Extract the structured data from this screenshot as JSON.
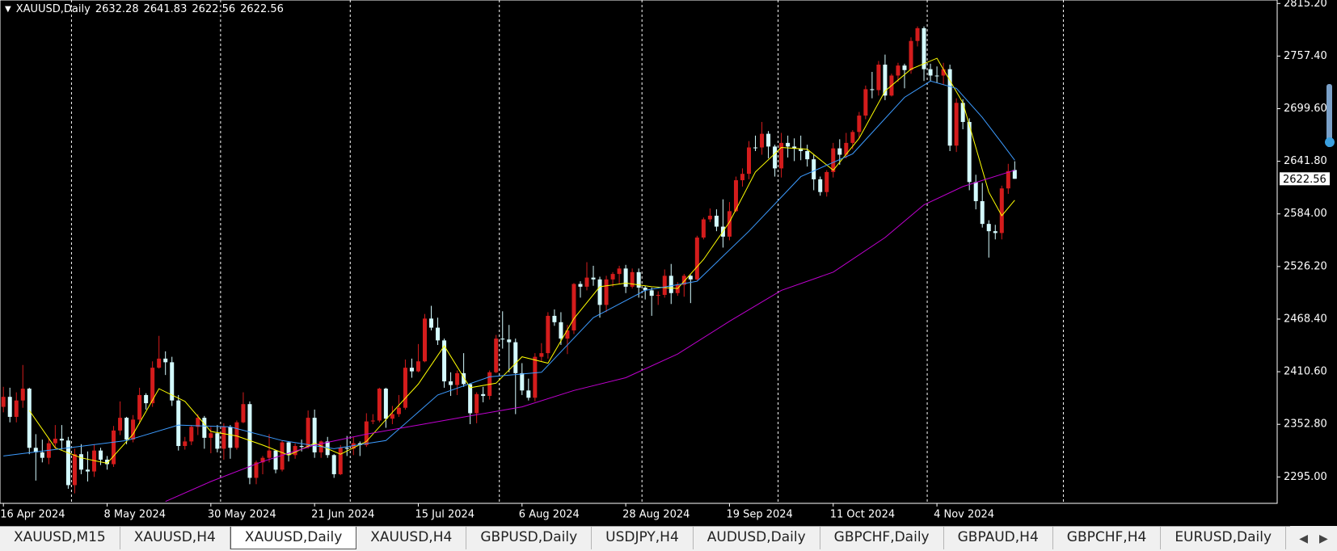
{
  "chart_data": {
    "type": "candlestick",
    "title": "XAUUSD,Daily",
    "categories": [
      "16 Apr 2024",
      null,
      null,
      null,
      null,
      null,
      null,
      null,
      null,
      null,
      null,
      null,
      null,
      null,
      null,
      null,
      "8 May 2024",
      null,
      null,
      null,
      null,
      null,
      null,
      null,
      null,
      null,
      null,
      null,
      null,
      null,
      null,
      null,
      "30 May 2024",
      null,
      null,
      null,
      null,
      null,
      null,
      null,
      null,
      null,
      null,
      null,
      null,
      null,
      null,
      null,
      "21 Jun 2024",
      null,
      null,
      null,
      null,
      null,
      null,
      null,
      null,
      null,
      null,
      null,
      null,
      null,
      null,
      null,
      "15 Jul 2024",
      null,
      null,
      null,
      null,
      null,
      null,
      null,
      null,
      null,
      null,
      null,
      null,
      null,
      null,
      null,
      "6 Aug 2024",
      null,
      null,
      null,
      null,
      null,
      null,
      null,
      null,
      null,
      null,
      null,
      null,
      null,
      null,
      null,
      "28 Aug 2024",
      null,
      null,
      null,
      null,
      null,
      null,
      null,
      null,
      null,
      null,
      null,
      null,
      null,
      null,
      null,
      "19 Sep 2024",
      null,
      null,
      null,
      null,
      null,
      null,
      null,
      null,
      null,
      null,
      null,
      null,
      null,
      null,
      null,
      "11 Oct 2024",
      null,
      null,
      null,
      null,
      null,
      null,
      null,
      null,
      null,
      null,
      null,
      null,
      null,
      null,
      null,
      "4 Nov 2024",
      null,
      null,
      null,
      null,
      null,
      null,
      null,
      null,
      null,
      null,
      null,
      null
    ],
    "open": [
      2372,
      2383,
      2361,
      2379,
      2392,
      2327,
      2322,
      2316,
      2332,
      2337,
      2335,
      2286,
      2320,
      2303,
      2301,
      2324,
      2314,
      2309,
      2346,
      2360,
      2336,
      2358,
      2385,
      2376,
      2415,
      2425,
      2421,
      2379,
      2329,
      2334,
      2350,
      2360,
      2338,
      2343,
      2326,
      2350,
      2327,
      2355,
      2375,
      2294,
      2311,
      2316,
      2324,
      2303,
      2333,
      2319,
      2329,
      2328,
      2360,
      2322,
      2334,
      2319,
      2298,
      2327,
      2326,
      2332,
      2330,
      2356,
      2357,
      2392,
      2359,
      2364,
      2371,
      2415,
      2411,
      2422,
      2469,
      2459,
      2445,
      2400,
      2396,
      2409,
      2397,
      2365,
      2386,
      2384,
      2410,
      2447,
      2446,
      2443,
      2409,
      2390,
      2382,
      2427,
      2431,
      2472,
      2465,
      2447,
      2456,
      2507,
      2504,
      2514,
      2512,
      2484,
      2512,
      2518,
      2524,
      2504,
      2520,
      2503,
      2500,
      2494,
      2495,
      2516,
      2497,
      2506,
      2516,
      2512,
      2558,
      2578,
      2582,
      2570,
      2559,
      2587,
      2621,
      2628,
      2657,
      2657,
      2672,
      2658,
      2634,
      2662,
      2658,
      2656,
      2653,
      2644,
      2622,
      2608,
      2630,
      2656,
      2649,
      2662,
      2674,
      2692,
      2721,
      2720,
      2748,
      2714,
      2736,
      2747,
      2742,
      2774,
      2788,
      2743,
      2736,
      2736,
      2743,
      2659,
      2706,
      2685,
      2619,
      2598,
      2573,
      2565,
      2563,
      2612,
      2632.28
    ],
    "high": [
      2394,
      2393,
      2388,
      2418,
      2393,
      2342,
      2336,
      2338,
      2352,
      2352,
      2339,
      2326,
      2331,
      2323,
      2331,
      2327,
      2318,
      2351,
      2378,
      2361,
      2363,
      2393,
      2387,
      2422,
      2450,
      2433,
      2427,
      2385,
      2339,
      2352,
      2364,
      2362,
      2350,
      2352,
      2354,
      2352,
      2357,
      2388,
      2378,
      2313,
      2318,
      2342,
      2324,
      2335,
      2334,
      2332,
      2336,
      2368,
      2369,
      2335,
      2339,
      2320,
      2330,
      2340,
      2339,
      2334,
      2365,
      2364,
      2393,
      2393,
      2373,
      2385,
      2424,
      2425,
      2441,
      2474,
      2483,
      2470,
      2447,
      2410,
      2412,
      2431,
      2398,
      2388,
      2394,
      2412,
      2451,
      2477,
      2462,
      2447,
      2420,
      2403,
      2431,
      2442,
      2476,
      2479,
      2476,
      2462,
      2508,
      2510,
      2531,
      2527,
      2515,
      2516,
      2520,
      2527,
      2528,
      2524,
      2524,
      2505,
      2503,
      2499,
      2523,
      2529,
      2509,
      2518,
      2517,
      2560,
      2580,
      2590,
      2589,
      2600,
      2597,
      2625,
      2634,
      2664,
      2670,
      2685,
      2675,
      2660,
      2673,
      2670,
      2667,
      2670,
      2660,
      2649,
      2625,
      2632,
      2662,
      2666,
      2673,
      2676,
      2696,
      2725,
      2740,
      2752,
      2759,
      2738,
      2750,
      2749,
      2778,
      2790,
      2790,
      2749,
      2746,
      2750,
      2748,
      2711,
      2710,
      2689,
      2627,
      2618,
      2577,
      2572,
      2615,
      2639,
      2641.83
    ],
    "low": [
      2366,
      2355,
      2355,
      2371,
      2320,
      2291,
      2311,
      2309,
      2326,
      2325,
      2282,
      2277,
      2298,
      2290,
      2295,
      2308,
      2303,
      2306,
      2341,
      2331,
      2333,
      2353,
      2369,
      2372,
      2414,
      2407,
      2373,
      2324,
      2325,
      2330,
      2341,
      2326,
      2321,
      2322,
      2314,
      2315,
      2325,
      2354,
      2287,
      2287,
      2298,
      2311,
      2299,
      2301,
      2312,
      2315,
      2323,
      2326,
      2316,
      2316,
      2316,
      2294,
      2297,
      2318,
      2319,
      2318,
      2328,
      2353,
      2355,
      2349,
      2353,
      2361,
      2369,
      2404,
      2410,
      2421,
      2456,
      2440,
      2393,
      2384,
      2385,
      2394,
      2353,
      2354,
      2377,
      2380,
      2409,
      2436,
      2410,
      2364,
      2385,
      2379,
      2378,
      2422,
      2425,
      2461,
      2440,
      2430,
      2452,
      2492,
      2500,
      2505,
      2470,
      2476,
      2504,
      2507,
      2497,
      2502,
      2492,
      2490,
      2472,
      2484,
      2492,
      2485,
      2494,
      2493,
      2486,
      2511,
      2556,
      2575,
      2565,
      2547,
      2555,
      2586,
      2614,
      2622,
      2653,
      2649,
      2645,
      2625,
      2624,
      2646,
      2642,
      2643,
      2636,
      2610,
      2604,
      2603,
      2624,
      2638,
      2645,
      2655,
      2667,
      2688,
      2711,
      2714,
      2709,
      2713,
      2729,
      2722,
      2738,
      2768,
      2730,
      2730,
      2728,
      2726,
      2653,
      2652,
      2677,
      2610,
      2589,
      2569,
      2536,
      2556,
      2556,
      2606,
      2622.56
    ],
    "close": [
      2383,
      2361,
      2379,
      2392,
      2327,
      2322,
      2316,
      2332,
      2337,
      2335,
      2286,
      2320,
      2303,
      2301,
      2324,
      2314,
      2309,
      2346,
      2360,
      2336,
      2358,
      2385,
      2376,
      2415,
      2425,
      2421,
      2379,
      2329,
      2334,
      2350,
      2360,
      2338,
      2343,
      2326,
      2350,
      2327,
      2355,
      2375,
      2294,
      2311,
      2316,
      2324,
      2303,
      2333,
      2319,
      2329,
      2328,
      2360,
      2322,
      2334,
      2319,
      2298,
      2327,
      2326,
      2332,
      2330,
      2356,
      2357,
      2392,
      2359,
      2364,
      2371,
      2415,
      2411,
      2422,
      2469,
      2459,
      2445,
      2400,
      2396,
      2409,
      2397,
      2365,
      2386,
      2384,
      2410,
      2447,
      2446,
      2443,
      2409,
      2390,
      2382,
      2427,
      2431,
      2472,
      2465,
      2447,
      2456,
      2507,
      2504,
      2514,
      2512,
      2484,
      2512,
      2518,
      2524,
      2504,
      2520,
      2503,
      2500,
      2494,
      2495,
      2516,
      2497,
      2506,
      2516,
      2512,
      2558,
      2578,
      2582,
      2570,
      2559,
      2587,
      2621,
      2628,
      2657,
      2657,
      2672,
      2658,
      2634,
      2662,
      2658,
      2656,
      2653,
      2644,
      2622,
      2608,
      2630,
      2656,
      2649,
      2662,
      2674,
      2692,
      2721,
      2720,
      2748,
      2714,
      2736,
      2747,
      2742,
      2774,
      2788,
      2743,
      2736,
      2736,
      2743,
      2659,
      2706,
      2685,
      2619,
      2598,
      2573,
      2565,
      2563,
      2612,
      2631,
      2622.56
    ],
    "up_color": "#d41c1c",
    "down_color": "#d4fbff",
    "lines": [
      {
        "color": "#ffff00",
        "x": [
          4,
          8,
          12,
          16,
          20,
          24,
          28,
          32,
          36,
          40,
          44,
          48,
          52,
          56,
          60,
          64,
          68,
          72,
          76,
          80,
          84,
          88,
          92,
          96,
          100,
          104,
          108,
          112,
          116,
          120,
          124,
          128,
          132,
          136,
          140,
          144,
          148,
          152,
          154,
          156
        ],
        "values": [
          2368,
          2327,
          2316,
          2310,
          2342,
          2392,
          2378,
          2345,
          2340,
          2330,
          2319,
          2332,
          2320,
          2334,
          2366,
          2397,
          2439,
          2393,
          2398,
          2427,
          2420,
          2469,
          2504,
          2508,
          2504,
          2502,
          2534,
          2575,
          2630,
          2657,
          2655,
          2632,
          2667,
          2719,
          2743,
          2755,
          2706,
          2608,
          2582,
          2599
        ]
      },
      {
        "color": "#3c9bff",
        "x": [
          0,
          19,
          27,
          35,
          43,
          51,
          59,
          67,
          75,
          83,
          91,
          99,
          107,
          115,
          123,
          131,
          139,
          143,
          147,
          151,
          154,
          156
        ],
        "values": [
          2318,
          2335,
          2352,
          2350,
          2335,
          2326,
          2335,
          2385,
          2405,
          2410,
          2470,
          2500,
          2510,
          2565,
          2625,
          2650,
          2712,
          2730,
          2722,
          2690,
          2662,
          2643
        ]
      },
      {
        "color": "#c000d0",
        "x": [
          25,
          32,
          40,
          48,
          56,
          64,
          72,
          80,
          88,
          96,
          104,
          112,
          120,
          128,
          136,
          142,
          148,
          156
        ],
        "values": [
          2268,
          2290,
          2312,
          2330,
          2342,
          2352,
          2362,
          2372,
          2390,
          2404,
          2430,
          2466,
          2500,
          2520,
          2558,
          2594,
          2614,
          2632
        ]
      }
    ],
    "ylim": [
      2266,
      2819
    ],
    "yticks": [
      {
        "value": 2295,
        "label": "2295.00"
      },
      {
        "value": 2352.8,
        "label": "2352.80"
      },
      {
        "value": 2410.6,
        "label": "2410.60"
      },
      {
        "value": 2468.4,
        "label": "2468.40"
      },
      {
        "value": 2526.2,
        "label": "2526.20"
      },
      {
        "value": 2584,
        "label": "2584.00"
      },
      {
        "value": 2641.8,
        "label": "2641.80"
      },
      {
        "value": 2699.6,
        "label": "2699.60"
      },
      {
        "value": 2757.4,
        "label": "2757.40"
      },
      {
        "value": 2815.2,
        "label": "2815.20"
      }
    ]
  },
  "tabs": [
    "XAUUSD,M15",
    "XAUUSD,H4",
    "XAUUSD,Daily",
    "XAUUSD,H4",
    "GBPUSD,Daily",
    "USDJPY,H4",
    "AUDUSD,Daily",
    "GBPCHF,Daily",
    "GBPAUD,H4",
    "GBPCHF,H4",
    "EURUSD,Daily"
  ],
  "active_tab": 2
}
